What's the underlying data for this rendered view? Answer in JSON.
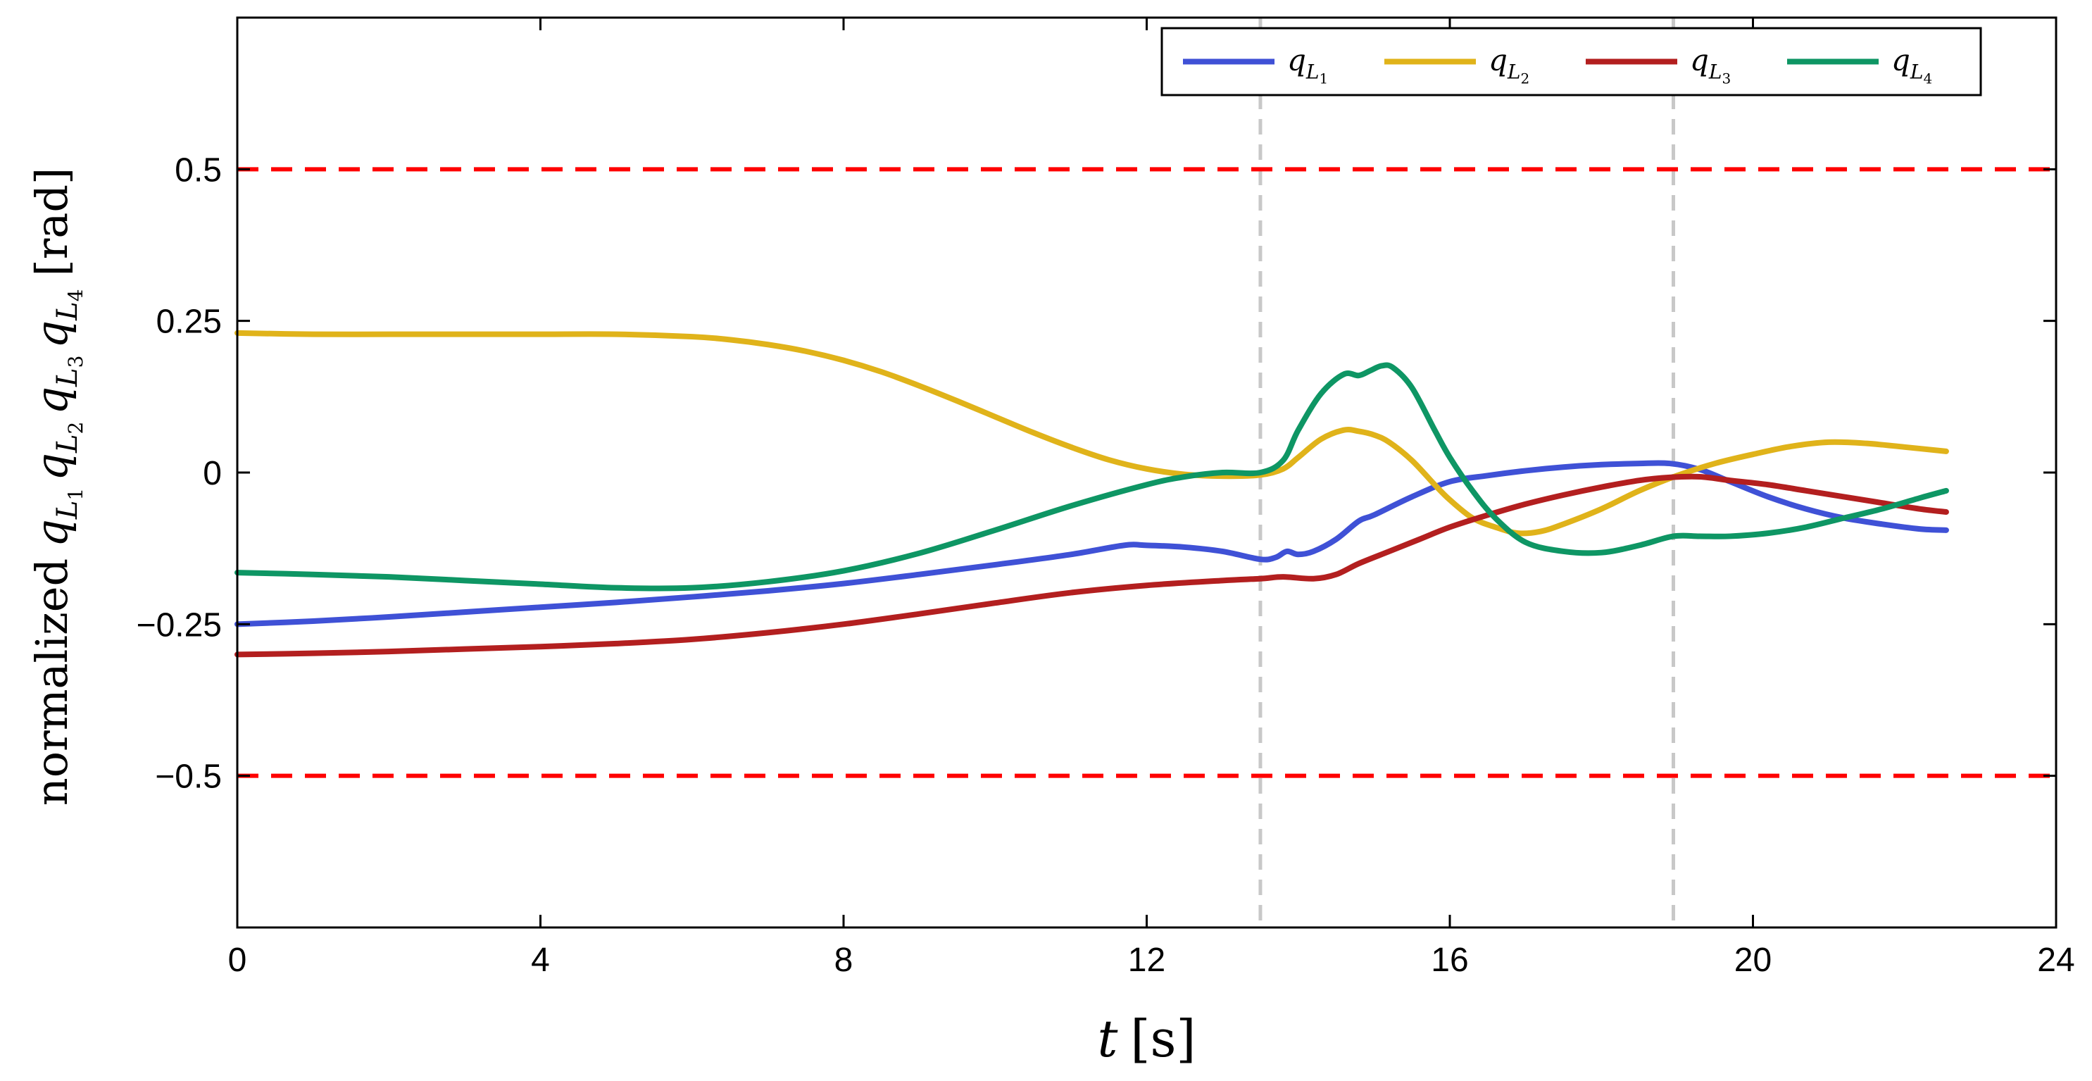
{
  "chart_data": {
    "type": "line",
    "title": "",
    "xlabel": "t [s]",
    "ylabel": "normalized q_L1 q_L2 q_L3 q_L4 [rad]",
    "xlim": [
      0,
      24
    ],
    "ylim": [
      -0.75,
      0.75
    ],
    "x_ticks": [
      0,
      4,
      8,
      12,
      16,
      20,
      24
    ],
    "x_tick_labels": [
      "0",
      "4",
      "8",
      "12",
      "16",
      "20",
      "24"
    ],
    "y_ticks": [
      -0.5,
      -0.25,
      0,
      0.25,
      0.5
    ],
    "y_tick_labels": [
      "−0.5",
      "−0.25",
      "0",
      "0.25",
      "0.5"
    ],
    "grid": false,
    "legend_position": "top-right",
    "limits": [
      {
        "value": 0.5,
        "color": "#ff0000",
        "style": "dashed"
      },
      {
        "value": -0.5,
        "color": "#ff0000",
        "style": "dashed"
      }
    ],
    "event_lines": [
      {
        "x": 13.5,
        "color": "#c8c8c8",
        "style": "dashed"
      },
      {
        "x": 18.95,
        "color": "#c8c8c8",
        "style": "dashed"
      }
    ],
    "series": [
      {
        "name": "q_L1",
        "label_base": "q",
        "label_sub": "L",
        "label_subsub": "1",
        "color": "#3f51d6",
        "x": [
          0,
          1,
          2,
          3,
          4,
          5,
          6,
          7,
          8,
          9,
          10,
          11,
          11.7,
          12,
          12.5,
          13,
          13.5,
          13.7,
          13.85,
          14,
          14.2,
          14.5,
          14.8,
          15,
          15.5,
          16,
          16.5,
          17,
          17.5,
          18,
          18.5,
          18.9,
          19.3,
          19.7,
          20.2,
          20.7,
          21.2,
          21.7,
          22.2,
          22.55
        ],
        "values": [
          -0.25,
          -0.245,
          -0.238,
          -0.23,
          -0.222,
          -0.214,
          -0.205,
          -0.195,
          -0.183,
          -0.168,
          -0.152,
          -0.135,
          -0.12,
          -0.12,
          -0.123,
          -0.13,
          -0.143,
          -0.14,
          -0.13,
          -0.135,
          -0.13,
          -0.11,
          -0.08,
          -0.07,
          -0.04,
          -0.015,
          -0.005,
          0.003,
          0.009,
          0.013,
          0.015,
          0.015,
          0.005,
          -0.015,
          -0.04,
          -0.06,
          -0.075,
          -0.085,
          -0.093,
          -0.095
        ]
      },
      {
        "name": "q_L2",
        "label_base": "q",
        "label_sub": "L",
        "label_subsub": "2",
        "color": "#e0b31a",
        "x": [
          0,
          1,
          2,
          3,
          4,
          5,
          6,
          6.5,
          7,
          7.5,
          8,
          8.5,
          9,
          9.5,
          10,
          10.5,
          11,
          11.5,
          12,
          12.5,
          13,
          13.5,
          13.8,
          14,
          14.3,
          14.6,
          14.8,
          15,
          15.2,
          15.5,
          15.8,
          16,
          16.3,
          16.6,
          16.9,
          17.2,
          17.5,
          18,
          18.5,
          19,
          19.5,
          20,
          20.5,
          21,
          21.5,
          22,
          22.55
        ],
        "values": [
          0.23,
          0.228,
          0.228,
          0.228,
          0.228,
          0.228,
          0.224,
          0.219,
          0.211,
          0.2,
          0.185,
          0.166,
          0.143,
          0.118,
          0.092,
          0.066,
          0.042,
          0.021,
          0.006,
          -0.003,
          -0.006,
          -0.004,
          0.006,
          0.025,
          0.055,
          0.07,
          0.068,
          0.062,
          0.05,
          0.02,
          -0.02,
          -0.045,
          -0.075,
          -0.09,
          -0.1,
          -0.097,
          -0.085,
          -0.06,
          -0.03,
          -0.005,
          0.015,
          0.03,
          0.043,
          0.05,
          0.048,
          0.042,
          0.035
        ]
      },
      {
        "name": "q_L3",
        "label_base": "q",
        "label_sub": "L",
        "label_subsub": "3",
        "color": "#b31f1f",
        "x": [
          0,
          1,
          2,
          3,
          4,
          5,
          6,
          7,
          8,
          9,
          10,
          11,
          12,
          13,
          13.5,
          13.8,
          14.2,
          14.5,
          14.8,
          15.2,
          15.6,
          16,
          16.5,
          17,
          17.5,
          18,
          18.5,
          18.9,
          19.3,
          19.7,
          20.2,
          20.7,
          21.2,
          21.7,
          22.2,
          22.55
        ],
        "values": [
          -0.3,
          -0.298,
          -0.295,
          -0.291,
          -0.287,
          -0.282,
          -0.275,
          -0.264,
          -0.25,
          -0.233,
          -0.215,
          -0.198,
          -0.186,
          -0.178,
          -0.175,
          -0.172,
          -0.175,
          -0.168,
          -0.15,
          -0.13,
          -0.11,
          -0.09,
          -0.07,
          -0.052,
          -0.037,
          -0.024,
          -0.013,
          -0.008,
          -0.007,
          -0.013,
          -0.02,
          -0.03,
          -0.04,
          -0.05,
          -0.06,
          -0.065
        ]
      },
      {
        "name": "q_L4",
        "label_base": "q",
        "label_sub": "L",
        "label_subsub": "4",
        "color": "#0e9664",
        "x": [
          0,
          1,
          2,
          3,
          4,
          5,
          6,
          7,
          8,
          9,
          10,
          11,
          12,
          12.5,
          13,
          13.5,
          13.8,
          14,
          14.3,
          14.6,
          14.8,
          14.95,
          15.1,
          15.25,
          15.5,
          15.8,
          16,
          16.3,
          16.6,
          17,
          17.5,
          18,
          18.5,
          18.95,
          19.3,
          19.7,
          20.2,
          20.7,
          21.2,
          21.7,
          22.2,
          22.55
        ],
        "values": [
          -0.165,
          -0.168,
          -0.172,
          -0.178,
          -0.184,
          -0.19,
          -0.19,
          -0.18,
          -0.162,
          -0.133,
          -0.095,
          -0.055,
          -0.02,
          -0.007,
          0.0,
          0.0,
          0.02,
          0.07,
          0.13,
          0.162,
          0.16,
          0.168,
          0.176,
          0.173,
          0.14,
          0.07,
          0.025,
          -0.03,
          -0.075,
          -0.115,
          -0.13,
          -0.132,
          -0.12,
          -0.105,
          -0.105,
          -0.105,
          -0.1,
          -0.09,
          -0.075,
          -0.06,
          -0.042,
          -0.03
        ]
      }
    ]
  }
}
